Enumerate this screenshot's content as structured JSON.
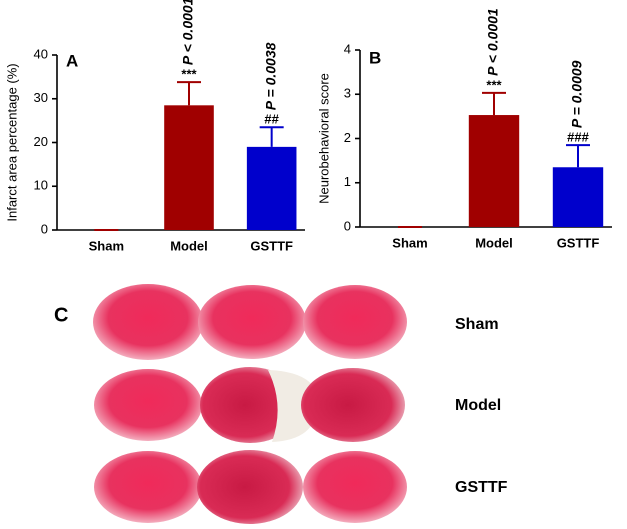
{
  "chart_data": [
    {
      "type": "bar",
      "panel": "A",
      "ylabel": "Infarct area percentage (%)",
      "categories": [
        "Sham",
        "Model",
        "GSTTF"
      ],
      "values": [
        0,
        28.5,
        19
      ],
      "errors": [
        0,
        5.3,
        4.5
      ],
      "colors": [
        "#a00000",
        "#a00000",
        "#0000cc"
      ],
      "annotations": [
        null,
        {
          "p": "P < 0.0001",
          "sig": "***"
        },
        {
          "p": "P = 0.0038",
          "sig": "##"
        }
      ],
      "ylim": [
        0,
        40
      ],
      "yticks": [
        0,
        10,
        20,
        30,
        40
      ]
    },
    {
      "type": "bar",
      "panel": "B",
      "ylabel": "Neurobehavioral score",
      "categories": [
        "Sham",
        "Model",
        "GSTTF"
      ],
      "values": [
        0,
        2.53,
        1.35
      ],
      "errors": [
        0,
        0.5,
        0.5
      ],
      "colors": [
        "#a00000",
        "#a00000",
        "#0000cc"
      ],
      "annotations": [
        null,
        {
          "p": "P < 0.0001",
          "sig": "***"
        },
        {
          "p": "P = 0.0009",
          "sig": "###"
        }
      ],
      "ylim": [
        0,
        4
      ],
      "yticks": [
        0,
        1,
        2,
        3,
        4
      ]
    }
  ],
  "panel_c": {
    "label": "C",
    "rows": [
      "Sham",
      "Model",
      "GSTTF"
    ]
  }
}
